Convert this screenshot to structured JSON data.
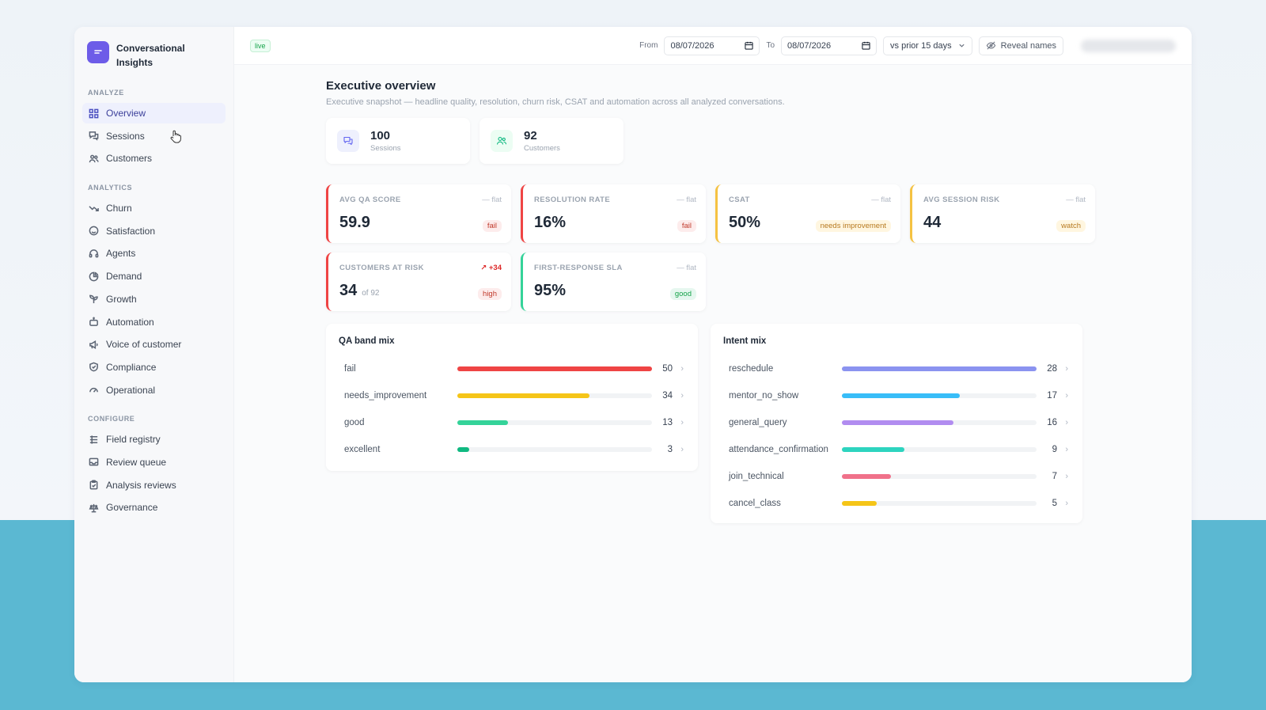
{
  "brand": {
    "name_line1": "Conversational",
    "name_line2": "Insights"
  },
  "sidebar": {
    "sections": [
      {
        "title": "ANALYZE",
        "items": [
          {
            "label": "Overview",
            "icon": "grid-icon",
            "active": true
          },
          {
            "label": "Sessions",
            "icon": "chat-icon"
          },
          {
            "label": "Customers",
            "icon": "users-icon"
          }
        ]
      },
      {
        "title": "ANALYTICS",
        "items": [
          {
            "label": "Churn",
            "icon": "trend-down-icon"
          },
          {
            "label": "Satisfaction",
            "icon": "smile-icon"
          },
          {
            "label": "Agents",
            "icon": "headset-icon"
          },
          {
            "label": "Demand",
            "icon": "pie-icon"
          },
          {
            "label": "Growth",
            "icon": "sprout-icon"
          },
          {
            "label": "Automation",
            "icon": "bot-icon"
          },
          {
            "label": "Voice of customer",
            "icon": "megaphone-icon"
          },
          {
            "label": "Compliance",
            "icon": "shield-icon"
          },
          {
            "label": "Operational",
            "icon": "gauge-icon"
          }
        ]
      },
      {
        "title": "CONFIGURE",
        "items": [
          {
            "label": "Field registry",
            "icon": "list-icon"
          },
          {
            "label": "Review queue",
            "icon": "inbox-icon"
          },
          {
            "label": "Analysis reviews",
            "icon": "clipboard-icon"
          },
          {
            "label": "Governance",
            "icon": "scale-icon"
          }
        ]
      }
    ]
  },
  "topbar": {
    "live_badge": "live",
    "from_label": "From",
    "from_date": "08/07/2026",
    "to_label": "To",
    "to_date": "08/07/2026",
    "compare_select": "vs prior 15 days",
    "reveal_label": "Reveal names"
  },
  "page": {
    "title": "Executive overview",
    "subtitle": "Executive snapshot — headline quality, resolution, churn risk, CSAT and automation across all analyzed conversations."
  },
  "stats": [
    {
      "value": "100",
      "label": "Sessions",
      "icon": "chat-icon"
    },
    {
      "value": "92",
      "label": "Customers",
      "icon": "users-icon"
    }
  ],
  "kpis": [
    {
      "label": "AVG QA SCORE",
      "trend": "— flat",
      "value": "59.9",
      "sub": "",
      "pill": "fail",
      "tone": "red"
    },
    {
      "label": "RESOLUTION RATE",
      "trend": "— flat",
      "value": "16%",
      "sub": "",
      "pill": "fail",
      "tone": "red"
    },
    {
      "label": "CSAT",
      "trend": "— flat",
      "value": "50%",
      "sub": "",
      "pill": "needs improvement",
      "tone": "yellow"
    },
    {
      "label": "AVG SESSION RISK",
      "trend": "— flat",
      "value": "44",
      "sub": "",
      "pill": "watch",
      "tone": "yellow"
    },
    {
      "label": "CUSTOMERS AT RISK",
      "trend": "↗ +34",
      "value": "34",
      "sub": "of 92",
      "pill": "high",
      "tone": "red"
    },
    {
      "label": "FIRST-RESPONSE SLA",
      "trend": "— flat",
      "value": "95%",
      "sub": "",
      "pill": "good",
      "tone": "green"
    }
  ],
  "qa_mix": {
    "title": "QA band mix",
    "max": 50,
    "rows": [
      {
        "label": "fail",
        "count": 50,
        "color": "#ef4444"
      },
      {
        "label": "needs_improvement",
        "count": 34,
        "color": "#f5c518"
      },
      {
        "label": "good",
        "count": 13,
        "color": "#34d399"
      },
      {
        "label": "excellent",
        "count": 3,
        "color": "#10b981"
      }
    ]
  },
  "intent_mix": {
    "title": "Intent mix",
    "max": 28,
    "rows": [
      {
        "label": "reschedule",
        "count": 28,
        "color": "#8b93f0"
      },
      {
        "label": "mentor_no_show",
        "count": 17,
        "color": "#38bdf8"
      },
      {
        "label": "general_query",
        "count": 16,
        "color": "#b18cf0"
      },
      {
        "label": "attendance_confirmation",
        "count": 9,
        "color": "#2dd4bf"
      },
      {
        "label": "join_technical",
        "count": 7,
        "color": "#f0718a"
      },
      {
        "label": "cancel_class",
        "count": 5,
        "color": "#f5c518"
      }
    ]
  }
}
